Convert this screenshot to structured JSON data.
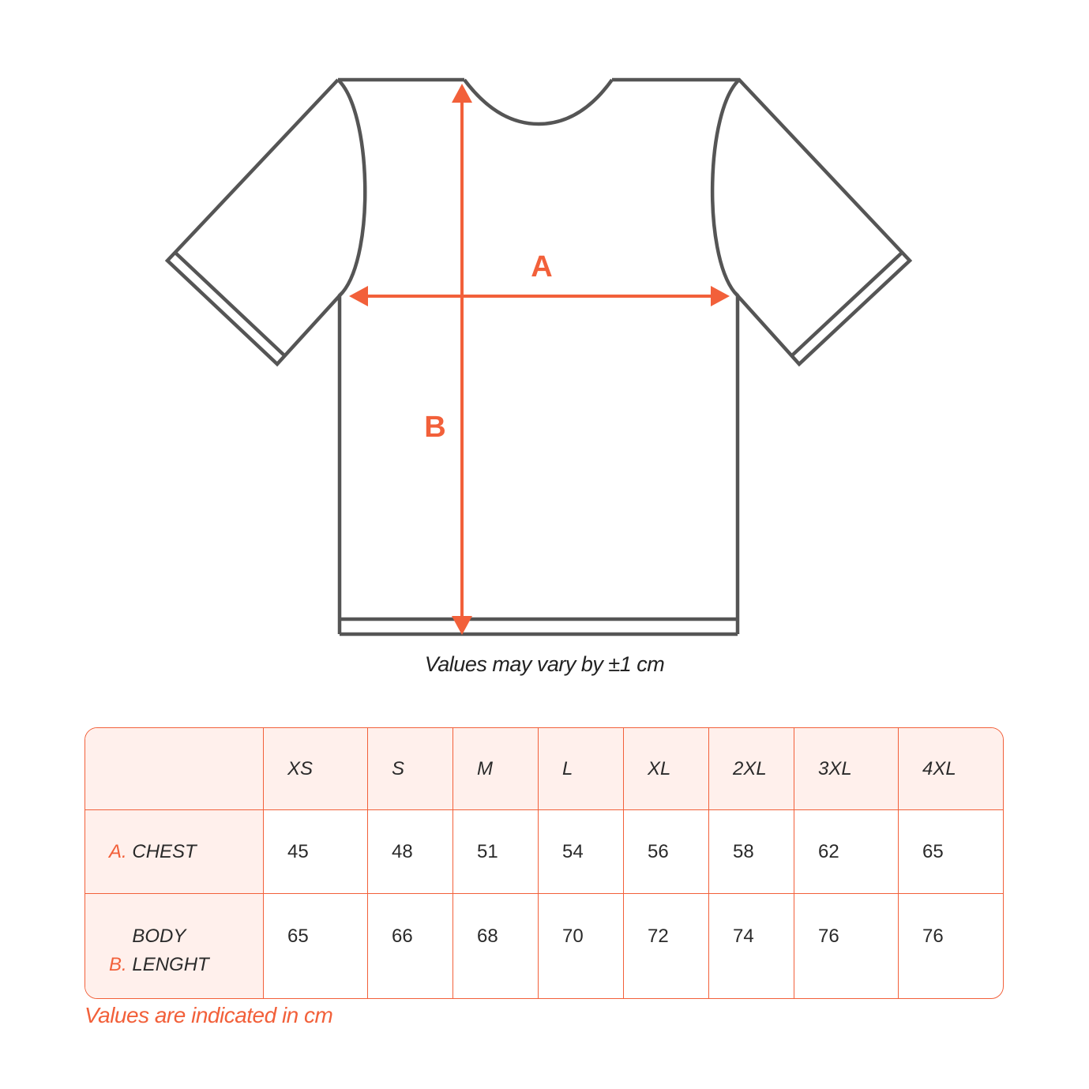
{
  "diagram": {
    "label_a": "A",
    "label_b": "B",
    "note": "Values may vary by ±1 cm",
    "colors": {
      "outline": "#555555",
      "accent": "#f2603a"
    }
  },
  "table": {
    "sizes": [
      "XS",
      "S",
      "M",
      "L",
      "XL",
      "2XL",
      "3XL",
      "4XL"
    ],
    "rows": [
      {
        "prefix": "A.",
        "label": "CHEST",
        "values": [
          "45",
          "48",
          "51",
          "54",
          "56",
          "58",
          "62",
          "65"
        ]
      },
      {
        "prefix": "B.",
        "label": "BODY LENGHT",
        "values": [
          "65",
          "66",
          "68",
          "70",
          "72",
          "74",
          "76",
          "76"
        ]
      }
    ]
  },
  "footer": "Values are indicated in cm"
}
